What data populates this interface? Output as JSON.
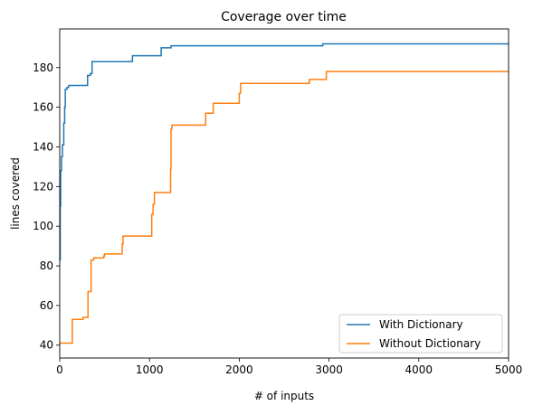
{
  "chart_data": {
    "type": "line",
    "title": "Coverage over time",
    "xlabel": "# of inputs",
    "ylabel": "lines covered",
    "xlim": [
      0,
      5000
    ],
    "ylim": [
      33.5,
      199.5
    ],
    "xticks": [
      0,
      1000,
      2000,
      3000,
      4000,
      5000
    ],
    "yticks": [
      40,
      60,
      80,
      100,
      120,
      140,
      160,
      180
    ],
    "grid": false,
    "legend_position": "lower-right",
    "series": [
      {
        "name": "With Dictionary",
        "color": "#1f77b4",
        "step": true,
        "points": [
          [
            0,
            83
          ],
          [
            5,
            110
          ],
          [
            10,
            128
          ],
          [
            20,
            135
          ],
          [
            30,
            141
          ],
          [
            45,
            152
          ],
          [
            55,
            160
          ],
          [
            62,
            169
          ],
          [
            80,
            170
          ],
          [
            100,
            171
          ],
          [
            300,
            171
          ],
          [
            310,
            176
          ],
          [
            340,
            177
          ],
          [
            360,
            183
          ],
          [
            800,
            183
          ],
          [
            810,
            186
          ],
          [
            1120,
            186
          ],
          [
            1130,
            190
          ],
          [
            1230,
            190
          ],
          [
            1240,
            191
          ],
          [
            2920,
            191
          ],
          [
            2930,
            192
          ],
          [
            5000,
            192
          ]
        ]
      },
      {
        "name": "Without Dictionary",
        "color": "#ff7f0e",
        "step": true,
        "points": [
          [
            0,
            41
          ],
          [
            130,
            41
          ],
          [
            140,
            53
          ],
          [
            250,
            53
          ],
          [
            260,
            54
          ],
          [
            310,
            54
          ],
          [
            315,
            67
          ],
          [
            345,
            67
          ],
          [
            350,
            83
          ],
          [
            370,
            83
          ],
          [
            380,
            84
          ],
          [
            480,
            84
          ],
          [
            490,
            85
          ],
          [
            500,
            86
          ],
          [
            690,
            86
          ],
          [
            695,
            91
          ],
          [
            705,
            95
          ],
          [
            1020,
            95
          ],
          [
            1025,
            106
          ],
          [
            1040,
            111
          ],
          [
            1055,
            117
          ],
          [
            1230,
            117
          ],
          [
            1235,
            129
          ],
          [
            1240,
            149
          ],
          [
            1250,
            151
          ],
          [
            1620,
            151
          ],
          [
            1625,
            157
          ],
          [
            1700,
            157
          ],
          [
            1710,
            162
          ],
          [
            1990,
            162
          ],
          [
            2000,
            167
          ],
          [
            2015,
            172
          ],
          [
            2770,
            172
          ],
          [
            2780,
            174
          ],
          [
            2960,
            174
          ],
          [
            2970,
            178
          ],
          [
            5000,
            178
          ]
        ]
      }
    ]
  }
}
